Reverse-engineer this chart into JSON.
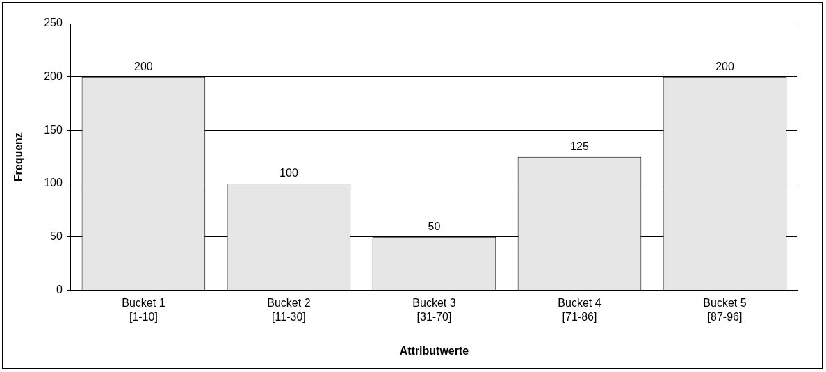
{
  "chart_data": {
    "type": "bar",
    "xlabel": "Attributwerte",
    "ylabel": "Frequenz",
    "categories": [
      "Bucket 1\n[1-10]",
      "Bucket 2\n[11-30]",
      "Bucket 3\n[31-70]",
      "Bucket 4\n[71-86]",
      "Bucket 5\n[87-96]"
    ],
    "values": [
      200,
      100,
      50,
      125,
      200
    ],
    "color": "#e6e6e6",
    "ylim": [
      0,
      250
    ],
    "yticks": [
      0,
      50,
      100,
      150,
      200,
      250
    ],
    "grid": "y",
    "data_labels": true,
    "legend": false
  }
}
